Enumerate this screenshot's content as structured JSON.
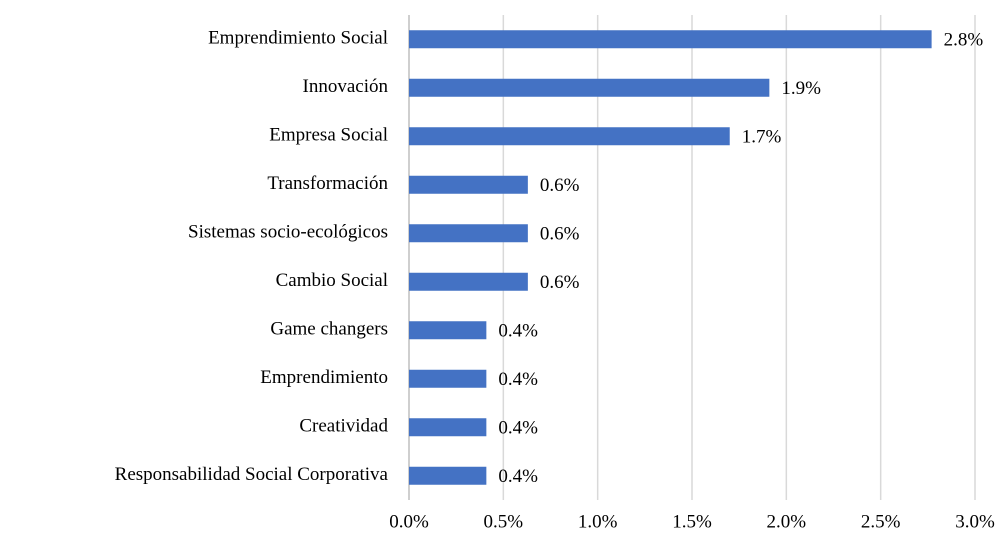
{
  "chart_data": {
    "type": "bar",
    "orientation": "horizontal",
    "categories": [
      "Emprendimiento Social",
      "Innovación",
      "Empresa Social",
      "Transformación",
      "Sistemas socio-ecológicos",
      "Cambio Social",
      "Game changers",
      "Emprendimiento",
      "Creatividad",
      "Responsabilidad Social Corporativa"
    ],
    "values": [
      2.77,
      1.91,
      1.7,
      0.63,
      0.63,
      0.63,
      0.41,
      0.41,
      0.41,
      0.41
    ],
    "value_labels": [
      "2.8%",
      "1.9%",
      "1.7%",
      "0.6%",
      "0.6%",
      "0.6%",
      "0.4%",
      "0.4%",
      "0.4%",
      "0.4%"
    ],
    "color": "#4472c4",
    "xlim": [
      0,
      3
    ],
    "xticks": [
      {
        "value": 0,
        "label": "0.0%"
      },
      {
        "value": 0.5,
        "label": "0.5%"
      },
      {
        "value": 1,
        "label": "1.0%"
      },
      {
        "value": 1.5,
        "label": "1.5%"
      },
      {
        "value": 2,
        "label": "2.0%"
      },
      {
        "value": 2.5,
        "label": "2.5%"
      },
      {
        "value": 3,
        "label": "3.0%"
      }
    ],
    "grid": true
  }
}
